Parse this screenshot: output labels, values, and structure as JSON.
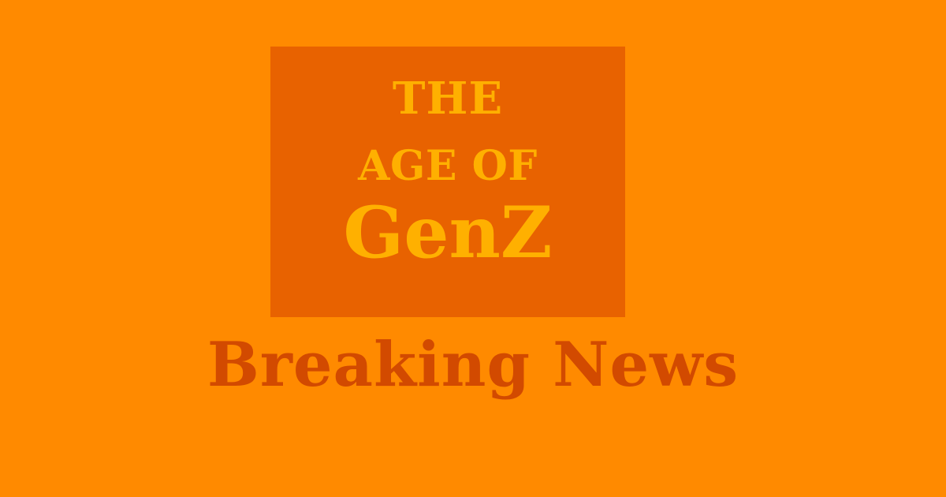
{
  "theme": {
    "background": "#FF8A00",
    "box_background": "#E86200",
    "logo_text_color": "#FFB000",
    "headline_color": "#D24A00"
  },
  "logo": {
    "line1": "THE",
    "line2": "AGE OF",
    "line3": "GenZ"
  },
  "headline": {
    "text": "Breaking News"
  }
}
